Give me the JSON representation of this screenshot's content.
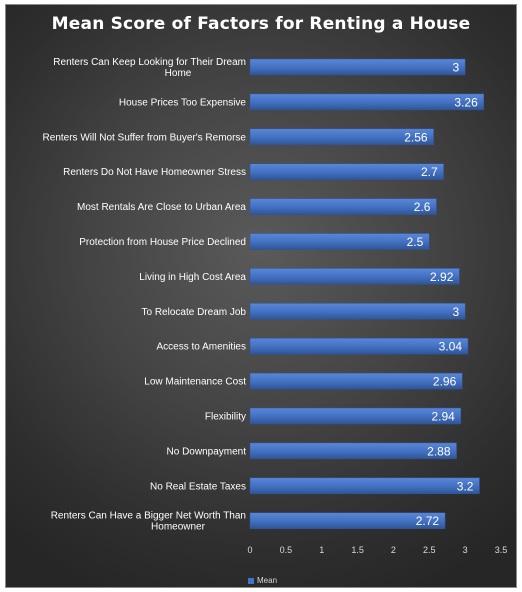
{
  "chart_data": {
    "type": "bar",
    "orientation": "horizontal",
    "title": "Mean Score of Factors for Renting a House",
    "categories": [
      "Renters Can Keep Looking for Their Dream Home",
      "House Prices Too Expensive",
      "Renters Will Not Suffer from Buyer's Remorse",
      "Renters Do Not Have Homeowner Stress",
      "Most Rentals Are Close to Urban Area",
      "Protection from House Price Declined",
      "Living in High Cost Area",
      "To Relocate Dream Job",
      "Access to Amenities",
      "Low Maintenance Cost",
      "Flexibility",
      "No Downpayment",
      "No Real Estate Taxes",
      "Renters Can Have a Bigger Net Worth Than Homeowner"
    ],
    "series": [
      {
        "name": "Mean",
        "color": "#4472c4",
        "values": [
          3,
          3.26,
          2.56,
          2.7,
          2.6,
          2.5,
          2.92,
          3,
          3.04,
          2.96,
          2.94,
          2.88,
          3.2,
          2.72
        ]
      }
    ],
    "data_labels": [
      "3",
      "3.26",
      "2.56",
      "2.7",
      "2.6",
      "2.5",
      "2.92",
      "3",
      "3.04",
      "2.96",
      "2.94",
      "2.88",
      "3.2",
      "2.72"
    ],
    "xlim": [
      0,
      3.5
    ],
    "x_ticks": [
      0,
      0.5,
      1,
      1.5,
      2,
      2.5,
      3,
      3.5
    ],
    "x_tick_labels": [
      "0",
      "0.5",
      "1",
      "1.5",
      "2",
      "2.5",
      "3",
      "3.5"
    ],
    "xlabel": "",
    "ylabel": "",
    "grid": false,
    "legend_position": "bottom",
    "legend_label": "Mean"
  }
}
